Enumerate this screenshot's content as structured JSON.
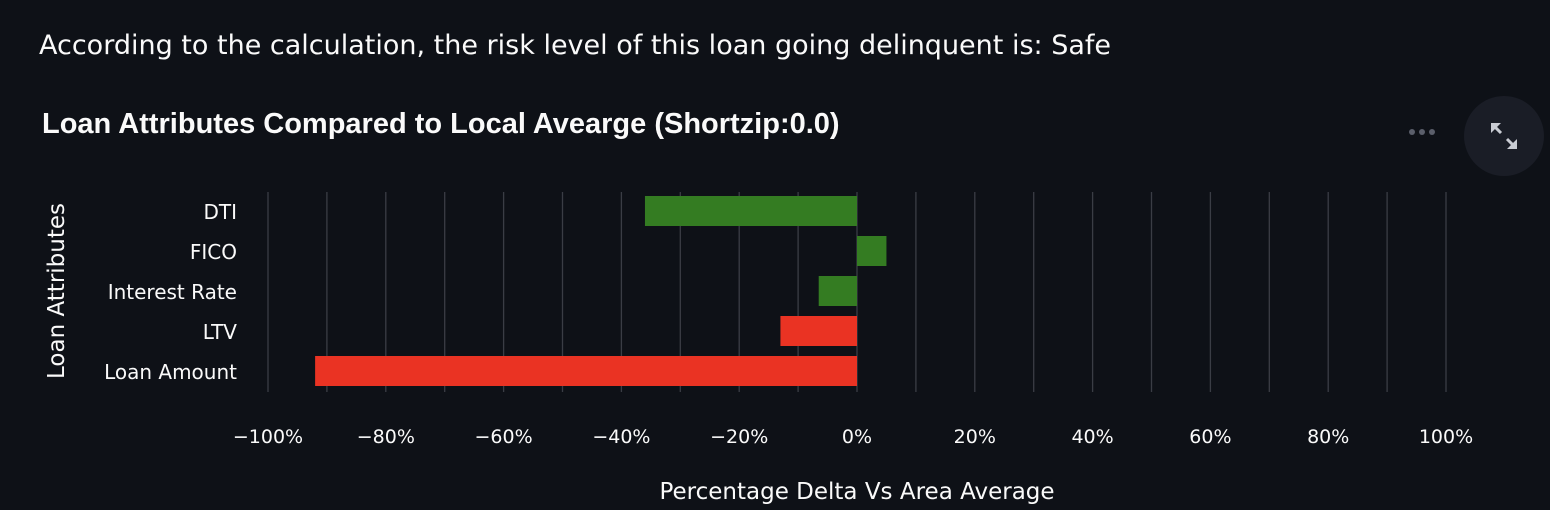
{
  "message": {
    "text": "According to the calculation, the risk level of this loan going delinquent is: Safe"
  },
  "colors": {
    "background": "#0e1117",
    "text": "#fafafa",
    "grid": "#3a3d45",
    "favorable": "#347c22",
    "unfavorable": "#ea3323"
  },
  "toolbar": {
    "more_icon": "more-horizontal-icon",
    "fullscreen_icon": "expand-arrows-icon"
  },
  "chart_data": {
    "type": "bar",
    "orientation": "horizontal",
    "title": "Loan Attributes Compared to Local Avearge (Shortzip:0.0)",
    "xlabel": "Percentage Delta Vs Area Average",
    "ylabel": "Loan Attributes",
    "xlim": [
      -100,
      100
    ],
    "x_ticks": [
      -100,
      -80,
      -60,
      -40,
      -20,
      0,
      20,
      40,
      60,
      80,
      100
    ],
    "x_tick_labels": [
      "−100%",
      "−80%",
      "−60%",
      "−40%",
      "−20%",
      "0%",
      "20%",
      "40%",
      "60%",
      "80%",
      "100%"
    ],
    "grid": true,
    "categories": [
      "DTI",
      "FICO",
      "Interest Rate",
      "LTV",
      "Loan Amount"
    ],
    "values": [
      -36,
      5,
      -6.5,
      -13,
      -92
    ],
    "bar_colors": [
      "#347c22",
      "#347c22",
      "#347c22",
      "#ea3323",
      "#ea3323"
    ]
  }
}
